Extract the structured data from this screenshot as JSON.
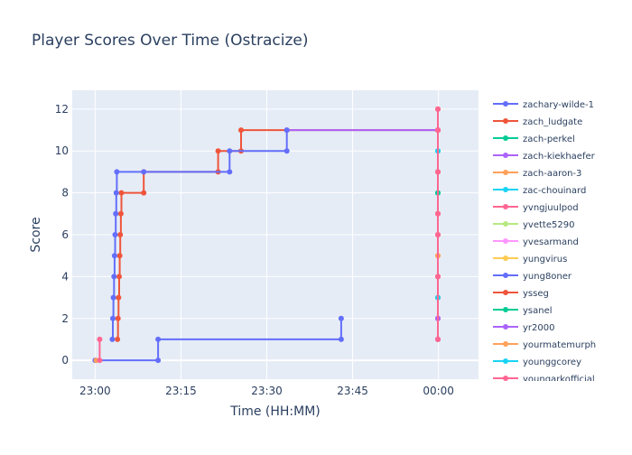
{
  "chart_data": {
    "type": "line",
    "line_shape": "step",
    "title": "Player Scores Over Time (Ostracize)",
    "xlabel": "Time (HH:MM)",
    "ylabel": "Score",
    "xlim": [
      "22:56",
      "00:07"
    ],
    "ylim": [
      -0.9,
      12.9
    ],
    "x_ticks": [
      "23:00",
      "23:15",
      "23:30",
      "23:45",
      "00:00"
    ],
    "y_ticks": [
      0,
      2,
      4,
      6,
      8,
      10,
      12
    ],
    "grid": true,
    "legend_position": "right",
    "series": [
      {
        "name": "zachary-wilde-1",
        "color": "#636efa",
        "points": [
          [
            "23:00",
            0
          ],
          [
            "23:11",
            0
          ],
          [
            "23:11",
            1
          ],
          [
            "23:43",
            1
          ],
          [
            "23:43",
            2
          ]
        ]
      },
      {
        "name": "zach_ludgate",
        "color": "#EF553B",
        "points": [
          [
            "23:03.9",
            1
          ],
          [
            "23:04",
            2
          ],
          [
            "23:04.1",
            3
          ],
          [
            "23:04.2",
            4
          ],
          [
            "23:04.3",
            5
          ],
          [
            "23:04.4",
            6
          ],
          [
            "23:04.5",
            7
          ],
          [
            "23:04.6",
            8
          ],
          [
            "23:08.5",
            8
          ],
          [
            "23:08.5",
            9
          ],
          [
            "23:21.5",
            9
          ],
          [
            "23:21.5",
            10
          ],
          [
            "23:25.5",
            10
          ],
          [
            "23:25.5",
            11
          ],
          [
            "23:59.9",
            11
          ]
        ]
      },
      {
        "name": "zach-perkel",
        "color": "#00cc96",
        "points": [
          [
            "23:59.9",
            8
          ]
        ]
      },
      {
        "name": "zach-kiekhaefer",
        "color": "#ab63fa",
        "points": [
          [
            "23:33.5",
            11
          ],
          [
            "23:59.9",
            11
          ]
        ]
      },
      {
        "name": "zach-aaron-3",
        "color": "#FFA15A",
        "points": [
          [
            "23:00.2",
            0
          ]
        ]
      },
      {
        "name": "zac-chouinard",
        "color": "#19d3f3",
        "points": [
          [
            "23:59.9",
            10
          ]
        ]
      },
      {
        "name": "yvngjuulpod",
        "color": "#FF6692",
        "points": [
          [
            "23:00.8",
            0
          ],
          [
            "23:00.8",
            1
          ]
        ]
      },
      {
        "name": "yvette5290",
        "color": "#B6E880",
        "points": []
      },
      {
        "name": "yvesarmand",
        "color": "#FF97FF",
        "points": []
      },
      {
        "name": "yungvirus",
        "color": "#FECB52",
        "points": [
          [
            "23:59.9",
            5
          ]
        ]
      },
      {
        "name": "yung8oner",
        "color": "#636efa",
        "points": [
          [
            "23:03",
            1
          ],
          [
            "23:03.1",
            2
          ],
          [
            "23:03.2",
            3
          ],
          [
            "23:03.3",
            4
          ],
          [
            "23:03.4",
            5
          ],
          [
            "23:03.5",
            6
          ],
          [
            "23:03.6",
            7
          ],
          [
            "23:03.7",
            8
          ],
          [
            "23:03.8",
            9
          ],
          [
            "23:08.5",
            9
          ],
          [
            "23:23.5",
            9
          ],
          [
            "23:23.5",
            10
          ],
          [
            "23:33.5",
            10
          ],
          [
            "23:33.5",
            11
          ]
        ]
      },
      {
        "name": "ysseg",
        "color": "#EF553B",
        "points": [
          [
            "23:59.9",
            1
          ],
          [
            "23:59.9",
            2
          ],
          [
            "23:59.9",
            3
          ],
          [
            "23:59.9",
            4
          ],
          [
            "23:59.9",
            6
          ],
          [
            "23:59.9",
            7
          ],
          [
            "23:59.9",
            9
          ],
          [
            "23:59.9",
            11
          ],
          [
            "23:59.9",
            12
          ]
        ]
      },
      {
        "name": "ysanel",
        "color": "#00cc96",
        "points": [
          [
            "23:59.9",
            8
          ]
        ]
      },
      {
        "name": "yr2000",
        "color": "#ab63fa",
        "points": [
          [
            "23:59.9",
            1
          ],
          [
            "23:59.9",
            2
          ]
        ]
      },
      {
        "name": "yourmatemurph",
        "color": "#FFA15A",
        "points": [
          [
            "23:59.9",
            5
          ]
        ]
      },
      {
        "name": "younggcorey",
        "color": "#19d3f3",
        "points": [
          [
            "23:59.9",
            3
          ],
          [
            "23:59.9",
            10
          ]
        ]
      },
      {
        "name": "youngarkofficial",
        "color": "#FF6692",
        "points": [
          [
            "23:59.9",
            1
          ],
          [
            "23:59.9",
            4
          ],
          [
            "23:59.9",
            6
          ],
          [
            "23:59.9",
            7
          ],
          [
            "23:59.9",
            9
          ],
          [
            "23:59.9",
            11
          ],
          [
            "23:59.9",
            12
          ]
        ]
      }
    ]
  }
}
